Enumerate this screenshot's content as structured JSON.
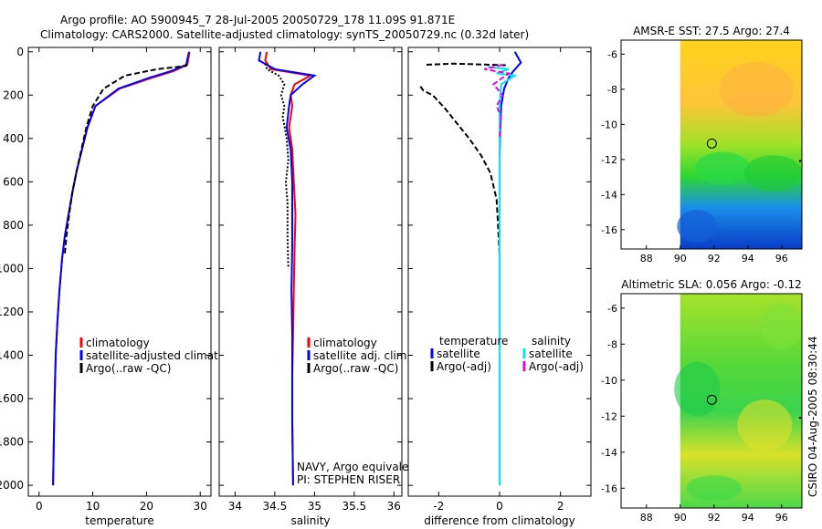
{
  "header": {
    "line1": "Argo profile: AO 5900945_7 28-Jul-2005 20050729_178 11.09S 91.871E",
    "line2": "Climatology: CARS2000. Satellite-adjusted climatology: synTS_20050729.nc (0.32d later)"
  },
  "side_stamp": "CSIRO 04-Aug-2005 08:30:44",
  "colors": {
    "climatology": "#ff0000",
    "satellite": "#0000ff",
    "argo": "#000000",
    "salt_sat": "#00e5ee",
    "salt_argo": "#ee00ee"
  },
  "chart_data": [
    {
      "id": "temperature",
      "type": "line",
      "xlabel": "temperature",
      "ylim": [
        2050,
        -20
      ],
      "xlim": [
        -2,
        32
      ],
      "xticks": [
        0,
        10,
        20,
        30
      ],
      "xtick_labels": [
        "0",
        "10",
        "20",
        "30"
      ],
      "yticks": [
        0,
        200,
        400,
        600,
        800,
        1000,
        1200,
        1400,
        1600,
        1800,
        2000
      ],
      "ytick_labels": [
        "0",
        "200",
        "400",
        "600",
        "800",
        "1000",
        "1200",
        "1400",
        "1600",
        "1800",
        "2000"
      ],
      "legend": [
        "climatology",
        "satellite-adjusted climatolo",
        "Argo(..raw -QC)"
      ],
      "series": [
        {
          "name": "climatology",
          "style": "solid",
          "x": [
            28,
            27.6,
            25,
            21,
            15,
            10.5,
            9,
            8,
            7,
            6.2,
            5.5,
            4.8,
            4.3,
            3.8,
            3.4,
            3.1,
            2.9,
            2.75,
            2.6
          ],
          "y": [
            0,
            60,
            90,
            120,
            170,
            250,
            350,
            450,
            550,
            650,
            750,
            850,
            950,
            1100,
            1250,
            1400,
            1600,
            1800,
            2000
          ]
        },
        {
          "name": "satellite",
          "style": "solid",
          "x": [
            27.9,
            27.4,
            24.5,
            20.5,
            14.8,
            10.5,
            9,
            8,
            7,
            6.2,
            5.5,
            4.8,
            4.3,
            3.8,
            3.4,
            3.1,
            2.9,
            2.75,
            2.6
          ],
          "y": [
            0,
            60,
            90,
            120,
            170,
            250,
            350,
            450,
            550,
            650,
            750,
            850,
            950,
            1100,
            1250,
            1400,
            1600,
            1800,
            2000
          ]
        },
        {
          "name": "argo",
          "style": "dashed",
          "x": [
            27.5,
            27.4,
            22,
            16,
            12,
            10,
            8.8,
            7.9,
            7,
            6.2,
            5.6,
            5.1,
            4.8
          ],
          "y": [
            55,
            65,
            80,
            110,
            170,
            250,
            350,
            450,
            550,
            650,
            750,
            850,
            930
          ]
        }
      ]
    },
    {
      "id": "salinity",
      "type": "line",
      "xlabel": "salinity",
      "ylim": [
        2050,
        -20
      ],
      "xlim": [
        33.8,
        36.1
      ],
      "xticks": [
        34,
        34.5,
        35,
        35.5,
        36
      ],
      "xtick_labels": [
        "34",
        "34.5",
        "35",
        "35.5",
        "36"
      ],
      "legend": [
        "climatology",
        "satellite adj. clim.",
        "Argo(..raw -QC)"
      ],
      "annotation": [
        "NAVY, Argo equivalent",
        "PI: STEPHEN RISER"
      ],
      "series": [
        {
          "name": "climatology",
          "style": "solid",
          "x": [
            34.4,
            34.38,
            34.45,
            34.95,
            34.75,
            34.7,
            34.72,
            34.68,
            34.72,
            34.74,
            34.76,
            34.75,
            34.74,
            34.73,
            34.72,
            34.72,
            34.73
          ],
          "y": [
            0,
            40,
            80,
            110,
            150,
            200,
            250,
            350,
            450,
            600,
            750,
            900,
            1100,
            1300,
            1500,
            1700,
            2000
          ]
        },
        {
          "name": "satellite",
          "style": "solid",
          "x": [
            34.32,
            34.3,
            34.5,
            35.0,
            34.85,
            34.7,
            34.68,
            34.65,
            34.7,
            34.72,
            34.72,
            34.72,
            34.71,
            34.72,
            34.72,
            34.72,
            34.73
          ],
          "y": [
            0,
            40,
            80,
            110,
            150,
            200,
            250,
            350,
            450,
            600,
            750,
            900,
            1100,
            1300,
            1500,
            1700,
            2000
          ]
        },
        {
          "name": "argo",
          "style": "dotted",
          "x": [
            34.38,
            34.4,
            34.55,
            34.62,
            34.58,
            34.62,
            34.6,
            34.65,
            34.67,
            34.64,
            34.66,
            34.66,
            34.67
          ],
          "y": [
            55,
            80,
            110,
            150,
            200,
            250,
            300,
            400,
            500,
            600,
            700,
            850,
            1000
          ]
        }
      ]
    },
    {
      "id": "difference",
      "type": "line",
      "xlabel": "difference from climatology",
      "ylim": [
        2050,
        -20
      ],
      "xlim": [
        -3,
        3
      ],
      "xticks": [
        -2,
        0,
        2
      ],
      "xtick_labels": [
        "-2",
        "0",
        "2"
      ],
      "legend_left": [
        "temperature",
        "satellite",
        "Argo(-adj)"
      ],
      "legend_right": [
        "salinity",
        "satellite",
        "Argo(-adj)"
      ],
      "series": [
        {
          "name": "temperature satellite",
          "color": "blue",
          "style": "solid",
          "x": [
            0.5,
            0.7,
            0.45,
            0.3,
            0.15,
            0.05,
            0.02,
            0,
            0,
            0,
            0,
            0
          ],
          "y": [
            0,
            50,
            90,
            120,
            170,
            250,
            350,
            500,
            800,
            1200,
            1600,
            2000
          ]
        },
        {
          "name": "temperature Argo(-adj)",
          "color": "black",
          "style": "dashed",
          "x": [
            -2.6,
            -2.5,
            -2.2,
            -1.8,
            -1.4,
            -1,
            -0.6,
            -0.3,
            -0.1,
            -0.05,
            0
          ],
          "y": [
            160,
            180,
            200,
            260,
            330,
            400,
            480,
            560,
            680,
            800,
            940
          ]
        },
        {
          "name": "temperature Argo top",
          "color": "black",
          "style": "dashed",
          "x": [
            -2.4,
            -1.5,
            -0.8,
            0.2
          ],
          "y": [
            60,
            55,
            58,
            62
          ]
        },
        {
          "name": "salinity satellite",
          "color": "cyan",
          "style": "solid",
          "x": [
            -0.4,
            0.3,
            -0.1,
            0.5,
            0.05,
            0,
            0,
            0,
            0,
            0
          ],
          "y": [
            70,
            80,
            100,
            110,
            150,
            250,
            500,
            1000,
            1500,
            2000
          ]
        },
        {
          "name": "salinity Argo(-adj)",
          "color": "magenta",
          "style": "dashed",
          "x": [
            0.1,
            -0.5,
            0.3,
            -0.2,
            0.1,
            -0.1,
            0.05,
            0
          ],
          "y": [
            60,
            80,
            100,
            150,
            200,
            250,
            300,
            400
          ]
        }
      ]
    },
    {
      "id": "sst-map",
      "type": "heatmap",
      "title": "AMSR-E SST: 27.5 Argo: 27.4",
      "xlim": [
        86.5,
        97.2
      ],
      "ylim": [
        -17.1,
        -5.2
      ],
      "xticks": [
        88,
        90,
        92,
        94,
        96
      ],
      "xtick_labels": [
        "88",
        "90",
        "92",
        "94",
        "96"
      ],
      "yticks": [
        -6,
        -8,
        -10,
        -12,
        -14,
        -16
      ],
      "ytick_labels": [
        "-6",
        "-8",
        "-10",
        "-12",
        "-14",
        "-16"
      ],
      "data_lon_min": 90,
      "float_lon": 91.87,
      "float_lat": -11.09
    },
    {
      "id": "sla-map",
      "type": "heatmap",
      "title": "Altimetric SLA: 0.056 Argo: -0.12",
      "xlim": [
        86.5,
        97.2
      ],
      "ylim": [
        -17.1,
        -5.2
      ],
      "xticks": [
        88,
        90,
        92,
        94,
        96
      ],
      "xtick_labels": [
        "88",
        "90",
        "92",
        "94",
        "96"
      ],
      "yticks": [
        -6,
        -8,
        -10,
        -12,
        -14,
        -16
      ],
      "ytick_labels": [
        "-6",
        "-8",
        "-10",
        "-12",
        "-14",
        "-16"
      ],
      "data_lon_min": 90,
      "float_lon": 91.87,
      "float_lat": -11.09
    }
  ]
}
